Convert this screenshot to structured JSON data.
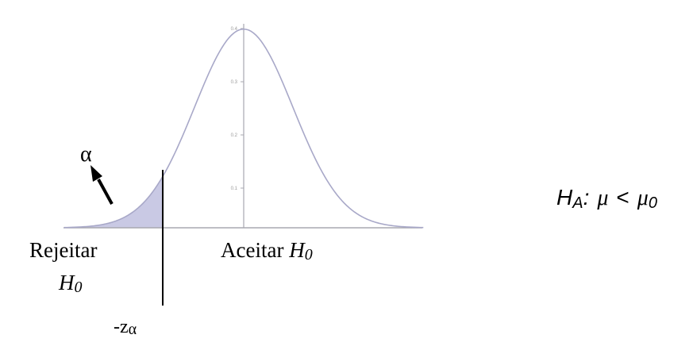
{
  "diagram": {
    "distribution": "standard-normal",
    "tail": "left",
    "y_ticks": [
      "0.4",
      "0.3",
      "0.2",
      "0.1"
    ],
    "y_tick_values": [
      0.4,
      0.3,
      0.2,
      0.1
    ],
    "critical_z": -1.645,
    "labels": {
      "alpha": "α",
      "reject_line1": "Rejeitar",
      "reject_H": "H",
      "reject_sub": "0",
      "accept_text": "Aceitar ",
      "accept_H": "H",
      "accept_sub": "0",
      "crit_prefix": "-z",
      "crit_alpha": "α"
    },
    "hypothesis": {
      "H": "H",
      "H_sub": "A",
      "colon": ":",
      "mu": "μ",
      "lt": "<",
      "mu2": "μ",
      "mu2_sub": "0"
    },
    "colors": {
      "curve": "#a8a8c8",
      "shade": "#c9c9e4",
      "axis": "#a8a8b0",
      "text": "#000000",
      "tick_text": "#9a9a9a"
    }
  }
}
